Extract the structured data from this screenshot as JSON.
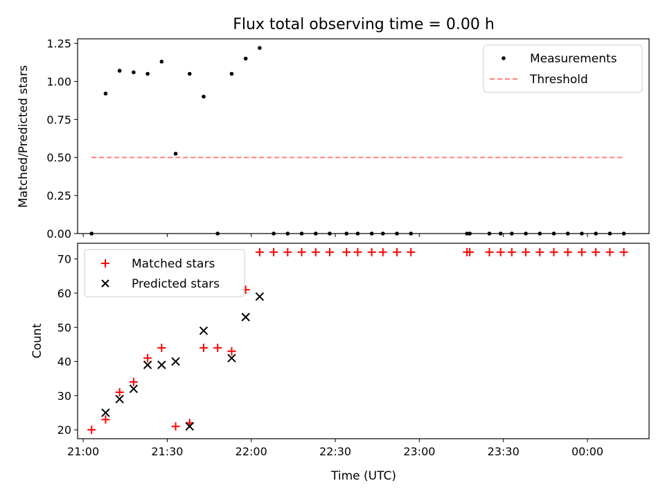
{
  "chart_data": [
    {
      "type": "scatter",
      "title": "Flux total observing time = 0.00 h",
      "xlabel": "",
      "ylabel": "Matched/Predicted stars",
      "ylim": [
        0,
        1.28
      ],
      "yticks": [
        0,
        0.25,
        0.5,
        0.75,
        1.0,
        1.25
      ],
      "ytick_labels": [
        "0.00",
        "0.25",
        "0.50",
        "0.75",
        "1.00",
        "1.25"
      ],
      "xlim": [
        "20:58",
        "00:22"
      ],
      "xticks": [
        "21:00",
        "21:30",
        "22:00",
        "22:30",
        "23:00",
        "23:30",
        "00:00"
      ],
      "legend_position": "top-right",
      "series": [
        {
          "name": "Measurements",
          "kind": "points",
          "color": "#000000",
          "x": [
            "21:03",
            "21:08",
            "21:13",
            "21:18",
            "21:23",
            "21:28",
            "21:33",
            "21:38",
            "21:43",
            "21:48",
            "21:53",
            "21:58",
            "22:03",
            "22:08",
            "22:13",
            "22:18",
            "22:23",
            "22:28",
            "22:34",
            "22:38",
            "22:43",
            "22:47",
            "22:52",
            "22:57",
            "23:17",
            "23:18",
            "23:25",
            "23:29",
            "23:33",
            "23:38",
            "23:43",
            "23:48",
            "23:53",
            "23:58",
            "00:03",
            "00:08",
            "00:13"
          ],
          "y": [
            0,
            0.92,
            1.07,
            1.06,
            1.05,
            1.13,
            0.525,
            1.05,
            0.9,
            0,
            1.05,
            1.15,
            1.22,
            0,
            0,
            0,
            0,
            0,
            0,
            0,
            0,
            0,
            0,
            0,
            0,
            0,
            0,
            0,
            0,
            0,
            0,
            0,
            0,
            0,
            0,
            0,
            0
          ]
        },
        {
          "name": "Threshold",
          "kind": "dashed-line",
          "color": "#ff7f7f",
          "x": [
            "21:03",
            "00:13"
          ],
          "y": [
            0.5,
            0.5
          ]
        }
      ]
    },
    {
      "type": "scatter",
      "title": "",
      "xlabel": "Time (UTC)",
      "ylabel": "Count",
      "ylim": [
        17.4,
        74.6
      ],
      "yticks": [
        20,
        30,
        40,
        50,
        60,
        70
      ],
      "ytick_labels": [
        "20",
        "30",
        "40",
        "50",
        "60",
        "70"
      ],
      "xlim": [
        "20:58",
        "00:22"
      ],
      "xticks": [
        "21:00",
        "21:30",
        "22:00",
        "22:30",
        "23:00",
        "23:30",
        "00:00"
      ],
      "xtick_labels": [
        "21:00",
        "21:30",
        "22:00",
        "22:30",
        "23:00",
        "23:30",
        "00:00"
      ],
      "legend_position": "top-left",
      "series": [
        {
          "name": "Matched stars",
          "kind": "plus-markers",
          "color": "#ff0000",
          "x": [
            "21:03",
            "21:08",
            "21:13",
            "21:18",
            "21:23",
            "21:28",
            "21:33",
            "21:38",
            "21:43",
            "21:48",
            "21:53",
            "21:58",
            "22:03",
            "22:08",
            "22:13",
            "22:18",
            "22:23",
            "22:28",
            "22:34",
            "22:38",
            "22:43",
            "22:47",
            "22:52",
            "22:57",
            "23:17",
            "23:18",
            "23:25",
            "23:29",
            "23:33",
            "23:38",
            "23:43",
            "23:48",
            "23:53",
            "23:58",
            "00:03",
            "00:08",
            "00:13"
          ],
          "y": [
            20,
            23,
            31,
            34,
            41,
            44,
            21,
            22,
            44,
            44,
            43,
            61,
            72,
            72,
            72,
            72,
            72,
            72,
            72,
            72,
            72,
            72,
            72,
            72,
            72,
            72,
            72,
            72,
            72,
            72,
            72,
            72,
            72,
            72,
            72,
            72,
            72
          ]
        },
        {
          "name": "Predicted stars",
          "kind": "x-markers",
          "color": "#000000",
          "x": [
            "21:08",
            "21:13",
            "21:18",
            "21:23",
            "21:28",
            "21:33",
            "21:38",
            "21:43",
            "21:53",
            "21:58",
            "22:03"
          ],
          "y": [
            25,
            29,
            32,
            39,
            39,
            40,
            21,
            49,
            41,
            53,
            59
          ]
        }
      ]
    }
  ]
}
